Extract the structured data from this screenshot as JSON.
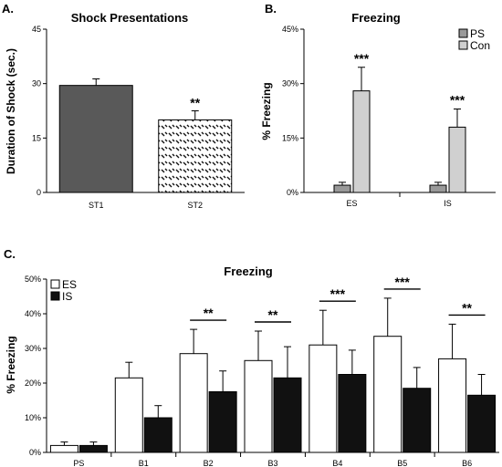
{
  "chart_data": [
    {
      "panel": "A.",
      "type": "bar",
      "title": "Shock Presentations",
      "ylabel": "Duration of Shock (sec.)",
      "xlabel": "",
      "ylim": [
        0,
        45
      ],
      "yticks": [
        "0",
        "15",
        "30",
        "45"
      ],
      "categories": [
        "ST1",
        "ST2"
      ],
      "values": [
        29.5,
        20
      ],
      "errors": [
        1.8,
        2.5
      ],
      "significance": [
        "",
        "**"
      ],
      "colors": [
        "#595959",
        "pattern-checker"
      ]
    },
    {
      "panel": "B.",
      "type": "bar",
      "title": "Freezing",
      "ylabel": "% Freezing",
      "xlabel": "",
      "ylim": [
        0,
        45
      ],
      "yticks": [
        "0%",
        "15%",
        "30%",
        "45%"
      ],
      "categories": [
        "ES",
        "IS"
      ],
      "series": [
        {
          "name": "PS",
          "values": [
            2,
            2
          ],
          "errors": [
            0.8,
            0.8
          ],
          "color": "#999999"
        },
        {
          "name": "Con",
          "values": [
            28,
            18
          ],
          "errors": [
            6.5,
            5
          ],
          "color": "#d0d0d0"
        }
      ],
      "significance": [
        "***",
        "***"
      ],
      "legend": "top-right"
    },
    {
      "panel": "C.",
      "type": "bar",
      "title": "Freezing",
      "ylabel": "% Freezing",
      "xlabel": "",
      "ylim": [
        0,
        50
      ],
      "yticks": [
        "0%",
        "10%",
        "20%",
        "30%",
        "40%",
        "50%"
      ],
      "categories": [
        "PS",
        "B1",
        "B2",
        "B3",
        "B4",
        "B5",
        "B6"
      ],
      "series": [
        {
          "name": "ES",
          "values": [
            2,
            21.5,
            28.5,
            26.5,
            31,
            33.5,
            27
          ],
          "errors": [
            1,
            4.5,
            7,
            8.5,
            10,
            11,
            10
          ],
          "color": "#ffffff"
        },
        {
          "name": "IS",
          "values": [
            2,
            10,
            17.5,
            21.5,
            22.5,
            18.5,
            16.5
          ],
          "errors": [
            1,
            3.5,
            6,
            9,
            7,
            6,
            6
          ],
          "color": "#111111"
        }
      ],
      "significance": [
        "",
        "",
        "**",
        "**",
        "***",
        "***",
        "**"
      ],
      "legend": "top-left"
    }
  ]
}
